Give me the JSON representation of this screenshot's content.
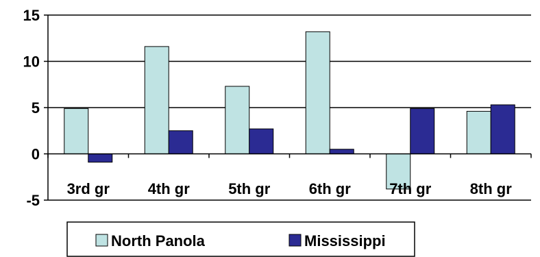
{
  "chart_data": {
    "type": "bar",
    "categories": [
      "3rd gr",
      "4th gr",
      "5th gr",
      "6th gr",
      "7th gr",
      "8th gr"
    ],
    "series": [
      {
        "name": "North Panola",
        "color": "#bfe3e3",
        "values": [
          4.9,
          11.6,
          7.3,
          13.2,
          -3.8,
          4.6
        ]
      },
      {
        "name": "Mississippi",
        "color": "#2b2b93",
        "values": [
          -0.9,
          2.5,
          2.7,
          0.5,
          4.9,
          5.3
        ]
      }
    ],
    "ylim": [
      -5,
      15
    ],
    "yticks": [
      "-5",
      "0",
      "5",
      "10",
      "15"
    ],
    "grid": true,
    "legend_position": "bottom"
  }
}
